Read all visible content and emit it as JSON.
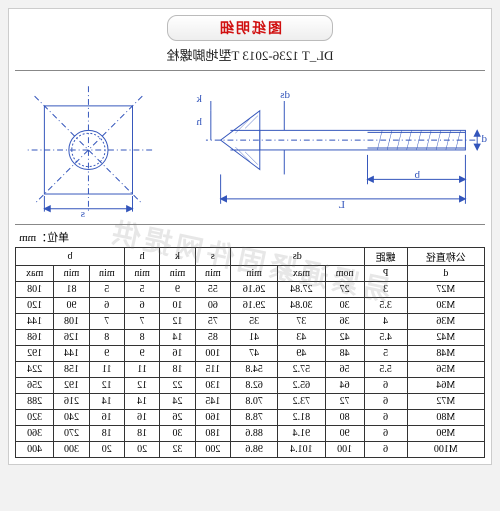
{
  "header": {
    "red_label": "图纸明细",
    "standard": "DL_T 1236-2013 T型地脚螺栓"
  },
  "unit_label": "单位：mm",
  "diagram": {
    "labels": {
      "L": "L",
      "b": "b",
      "d": "d",
      "ds": "ds",
      "h": "h",
      "k": "k",
      "s": "s"
    },
    "stroke": "#3355bb"
  },
  "table": {
    "headers_row1": [
      "公称直径",
      "螺距",
      "ds",
      "s",
      "k",
      "h",
      "b"
    ],
    "headers_row2": [
      "d",
      "P",
      "nom",
      "max",
      "min",
      "min",
      "min",
      "min",
      "max"
    ],
    "rows": [
      [
        "M27",
        "3",
        "27",
        "27.84",
        "26.16",
        "55",
        "9",
        "5",
        "5",
        "81",
        "108"
      ],
      [
        "M30",
        "3.5",
        "30",
        "30.84",
        "29.16",
        "60",
        "10",
        "6",
        "6",
        "90",
        "120"
      ],
      [
        "M36",
        "4",
        "36",
        "37",
        "35",
        "75",
        "12",
        "7",
        "7",
        "108",
        "144"
      ],
      [
        "M42",
        "4.5",
        "42",
        "43",
        "41",
        "85",
        "14",
        "8",
        "8",
        "126",
        "168"
      ],
      [
        "M48",
        "5",
        "48",
        "49",
        "47",
        "100",
        "16",
        "9",
        "9",
        "144",
        "192"
      ],
      [
        "M56",
        "5.5",
        "56",
        "57.2",
        "54.8",
        "115",
        "18",
        "11",
        "11",
        "158",
        "224"
      ],
      [
        "M64",
        "6",
        "64",
        "65.2",
        "62.8",
        "130",
        "22",
        "12",
        "12",
        "192",
        "256"
      ],
      [
        "M72",
        "6",
        "72",
        "73.2",
        "70.8",
        "145",
        "24",
        "14",
        "14",
        "216",
        "288"
      ],
      [
        "M80",
        "6",
        "80",
        "81.2",
        "78.8",
        "160",
        "26",
        "16",
        "16",
        "240",
        "320"
      ],
      [
        "M90",
        "6",
        "90",
        "91.4",
        "88.6",
        "180",
        "30",
        "18",
        "18",
        "270",
        "360"
      ],
      [
        "M100",
        "6",
        "100",
        "101.4",
        "98.6",
        "200",
        "32",
        "20",
        "20",
        "300",
        "400"
      ]
    ]
  },
  "watermark": "易紧通紧固件网提供"
}
